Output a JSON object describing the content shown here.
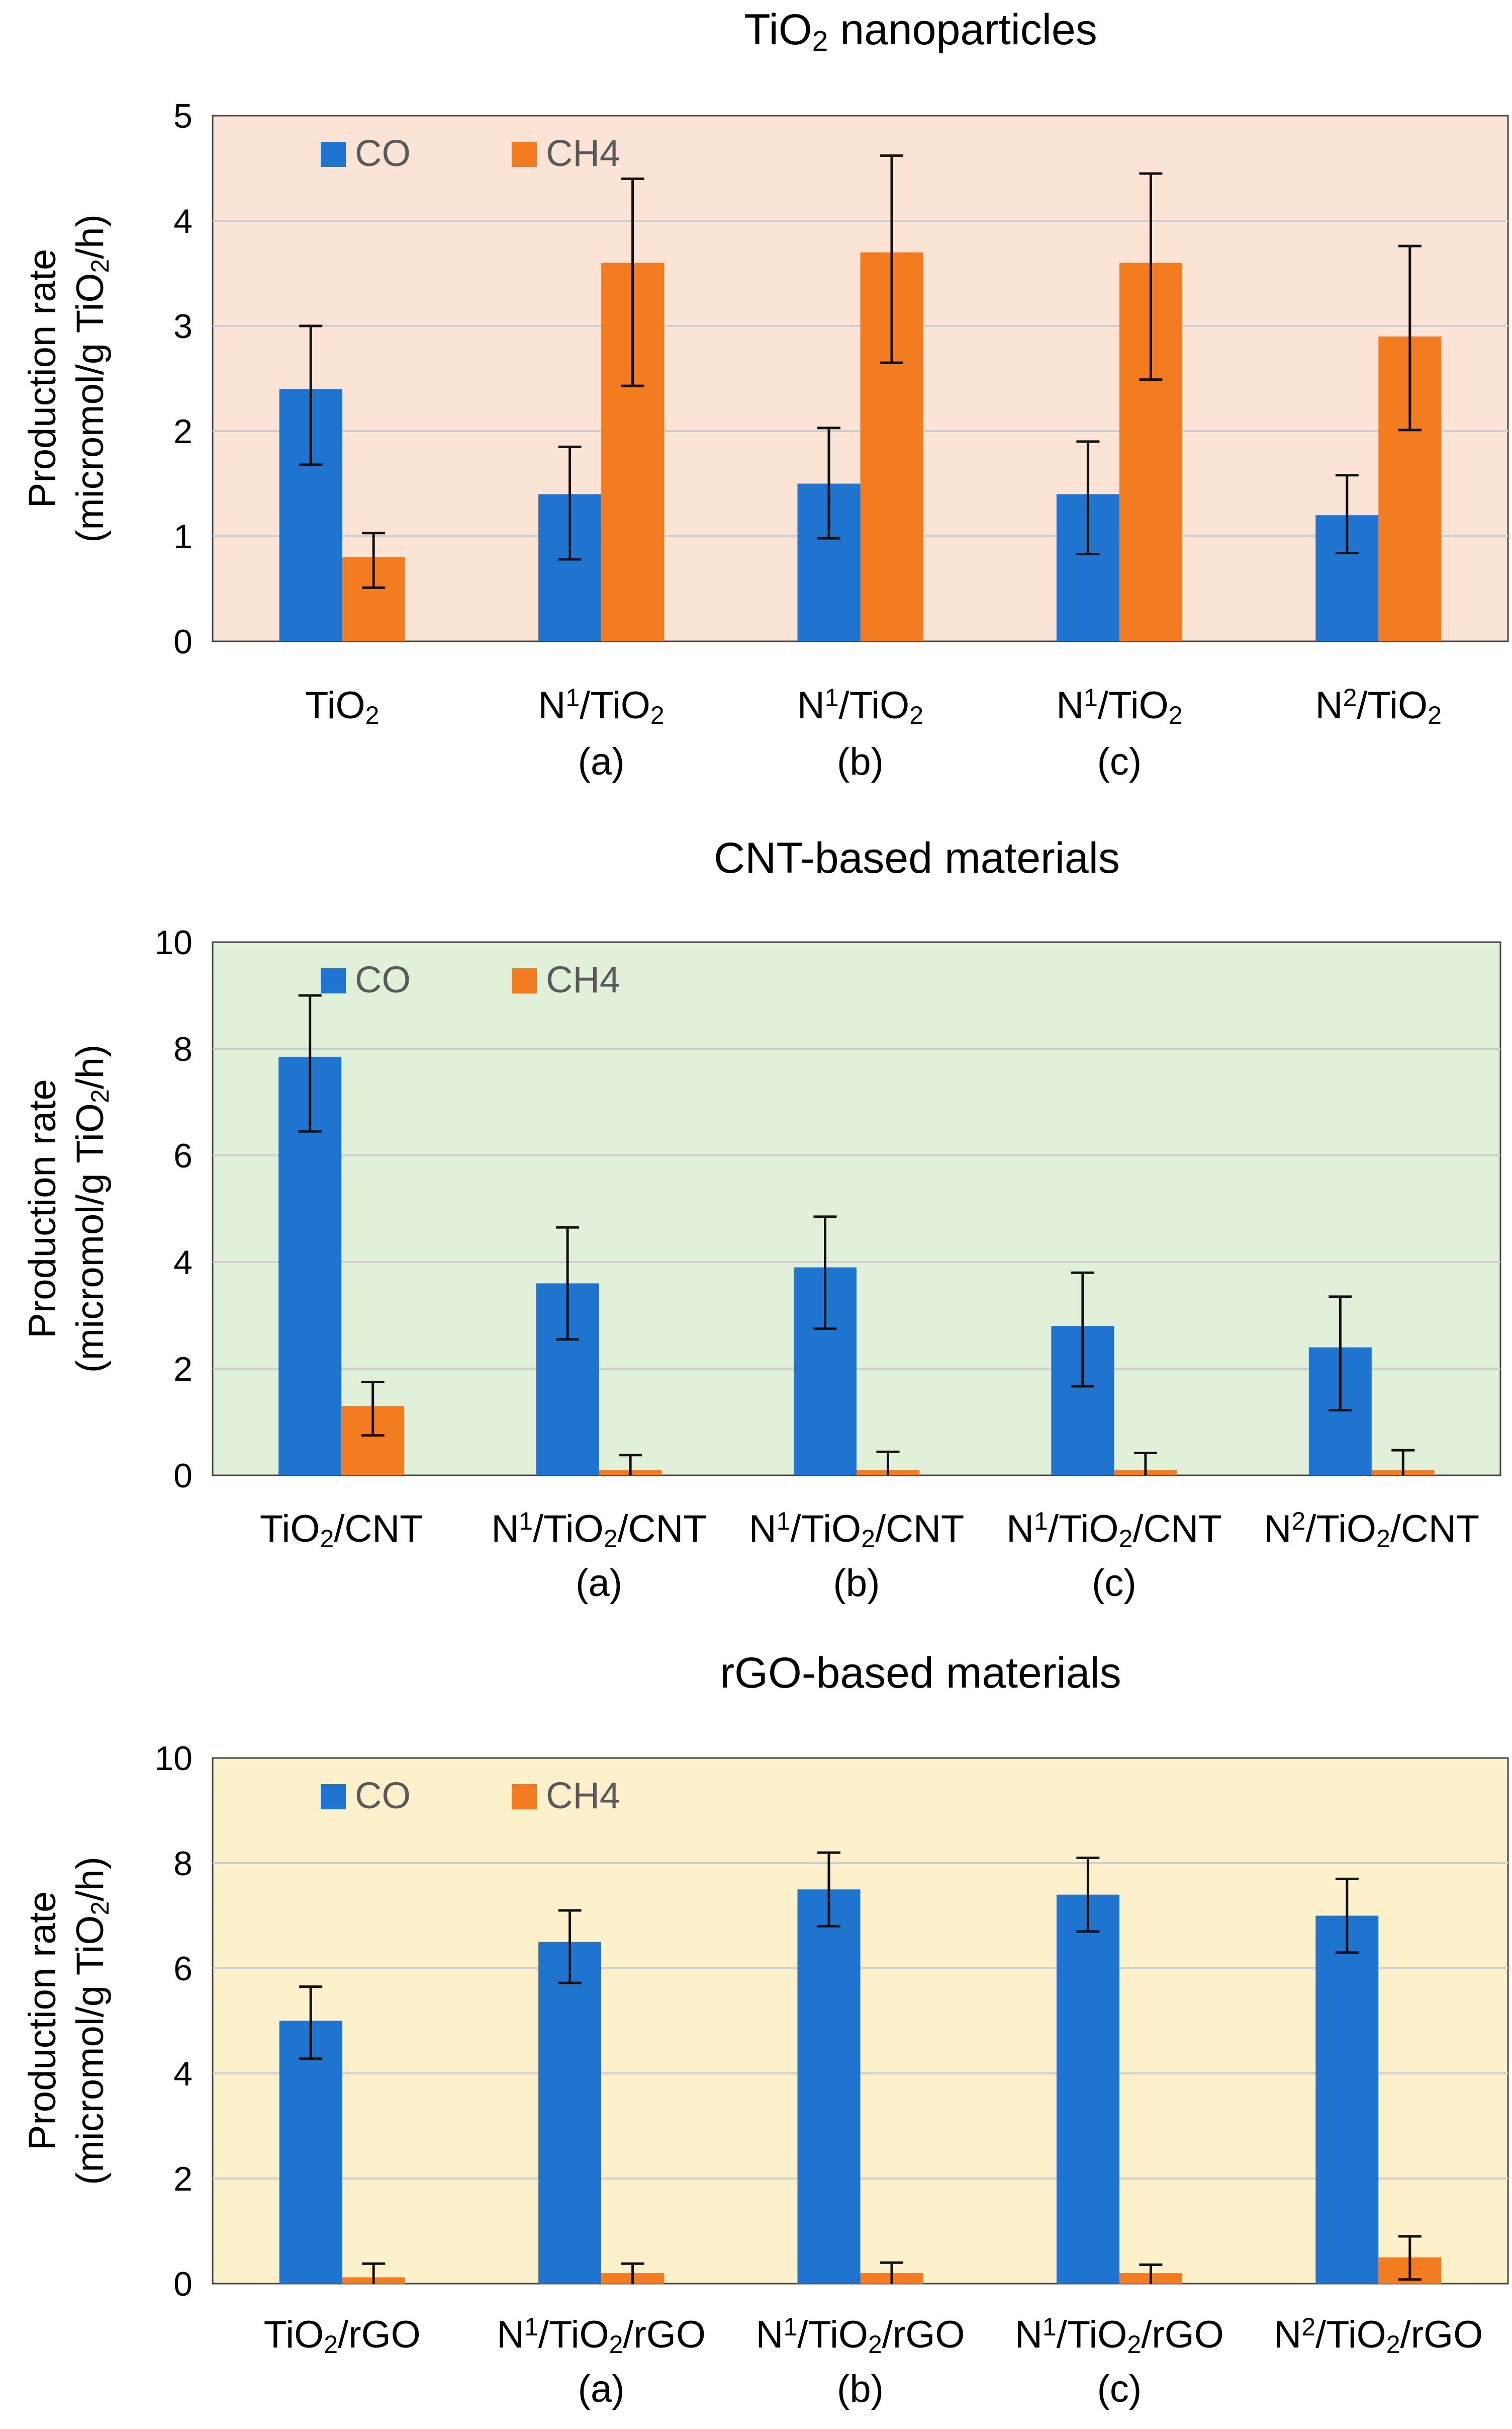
{
  "chart_data": [
    {
      "type": "bar",
      "title": "TiO|2| nanoparticles",
      "xlabel": "",
      "ylabel": [
        "Production rate",
        "(micromol/g TiO|2|/h)"
      ],
      "ylim": [
        0,
        5
      ],
      "yticks": [
        0,
        1,
        2,
        3,
        4,
        5
      ],
      "background": "#fbe4d6",
      "categories": [
        [
          "TiO|2|"
        ],
        [
          "N^1^/TiO|2|",
          "(a)"
        ],
        [
          "N^1^/TiO|2|",
          "(b)"
        ],
        [
          "N^1^/TiO|2|",
          "(c)"
        ],
        [
          "N^2^/TiO|2|"
        ]
      ],
      "series": [
        {
          "name": "CO",
          "color": "#1f74cf",
          "values": [
            2.4,
            1.4,
            1.5,
            1.4,
            1.2
          ],
          "error_low": [
            1.68,
            0.78,
            0.98,
            0.83,
            0.84
          ],
          "error_high": [
            3.0,
            1.85,
            2.03,
            1.9,
            1.58
          ]
        },
        {
          "name": "CH4",
          "color": "#f47c20",
          "values": [
            0.8,
            3.6,
            3.7,
            3.6,
            2.9
          ],
          "error_low": [
            0.51,
            2.43,
            2.65,
            2.49,
            2.01
          ],
          "error_high": [
            1.03,
            4.4,
            4.62,
            4.45,
            3.76
          ]
        }
      ],
      "legend": "top-left"
    },
    {
      "type": "bar",
      "title": "CNT-based materials",
      "xlabel": "",
      "ylabel": [
        "Production rate",
        "(micromol/g TiO|2|/h)"
      ],
      "ylim": [
        0,
        10
      ],
      "yticks": [
        0,
        2,
        4,
        6,
        8,
        10
      ],
      "background": "#e1f0d9",
      "categories": [
        [
          "TiO|2|/CNT"
        ],
        [
          "N^1^/TiO|2|/CNT",
          "(a)"
        ],
        [
          "N^1^/TiO|2|/CNT",
          "(b)"
        ],
        [
          "N^1^/TiO|2|/CNT",
          "(c)"
        ],
        [
          "N^2^/TiO|2|/CNT"
        ]
      ],
      "series": [
        {
          "name": "CO",
          "color": "#1f74cf",
          "values": [
            7.85,
            3.6,
            3.9,
            2.8,
            2.4
          ],
          "error_low": [
            6.45,
            2.55,
            2.75,
            1.67,
            1.22
          ],
          "error_high": [
            9.0,
            4.65,
            4.85,
            3.8,
            3.35
          ]
        },
        {
          "name": "CH4",
          "color": "#f47c20",
          "values": [
            1.3,
            0.1,
            0.1,
            0.1,
            0.1
          ],
          "error_low": [
            0.75,
            0.0,
            0.0,
            0.0,
            0.0
          ],
          "error_high": [
            1.75,
            0.38,
            0.44,
            0.42,
            0.47
          ]
        }
      ],
      "legend": "top-left"
    },
    {
      "type": "bar",
      "title": "rGO-based materials",
      "xlabel": "",
      "ylabel": [
        "Production rate",
        "(micromol/g TiO|2|/h)"
      ],
      "ylim": [
        0,
        10
      ],
      "yticks": [
        0,
        2,
        4,
        6,
        8,
        10
      ],
      "background": "#fdf1cc",
      "categories": [
        [
          "TiO|2|/rGO"
        ],
        [
          "N^1^/TiO|2|/rGO",
          "(a)"
        ],
        [
          "N^1^/TiO|2|/rGO",
          "(b)"
        ],
        [
          "N^1^/TiO|2|/rGO",
          "(c)"
        ],
        [
          "N^2^/TiO|2|/rGO"
        ]
      ],
      "series": [
        {
          "name": "CO",
          "color": "#1f74cf",
          "values": [
            5.0,
            6.5,
            7.5,
            7.4,
            7.0
          ],
          "error_low": [
            4.28,
            5.72,
            6.8,
            6.7,
            6.3
          ],
          "error_high": [
            5.65,
            7.1,
            8.2,
            8.1,
            7.7
          ]
        },
        {
          "name": "CH4",
          "color": "#f47c20",
          "values": [
            0.12,
            0.2,
            0.2,
            0.2,
            0.5
          ],
          "error_low": [
            0.0,
            0.0,
            0.0,
            0.0,
            0.08
          ],
          "error_high": [
            0.38,
            0.38,
            0.4,
            0.36,
            0.9
          ]
        }
      ],
      "legend": "top-left"
    }
  ]
}
